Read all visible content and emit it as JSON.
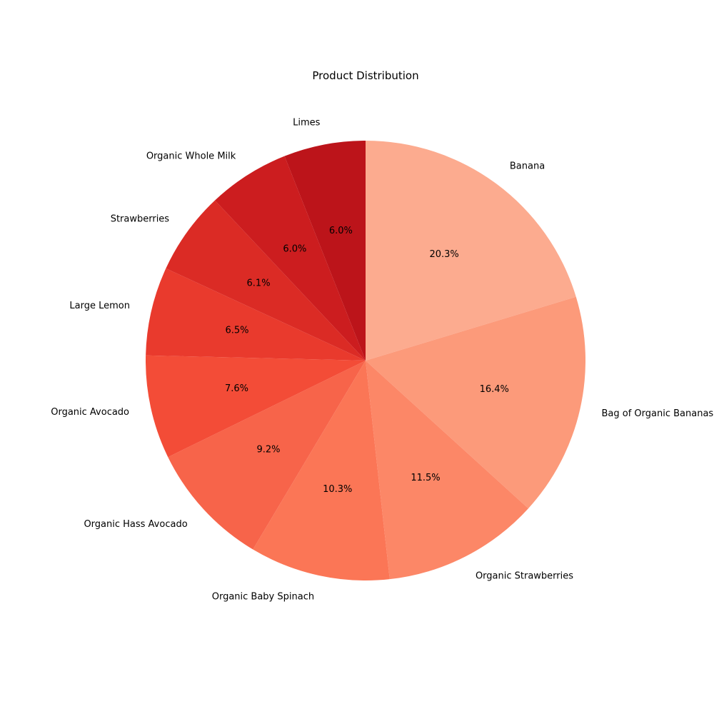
{
  "chart_data": {
    "type": "pie",
    "title": "Product Distribution",
    "title_color": "#8b0000",
    "start": "top",
    "direction": "clockwise",
    "slices": [
      {
        "label": "Banana",
        "value": 20.3,
        "pct_label": "20.3%",
        "color": "#fcab8f"
      },
      {
        "label": "Bag of Organic Bananas",
        "value": 16.4,
        "pct_label": "16.4%",
        "color": "#fc9a7a"
      },
      {
        "label": "Organic Strawberries",
        "value": 11.5,
        "pct_label": "11.5%",
        "color": "#fc8767"
      },
      {
        "label": "Organic Baby Spinach",
        "value": 10.3,
        "pct_label": "10.3%",
        "color": "#fb7656"
      },
      {
        "label": "Organic Hass Avocado",
        "value": 9.2,
        "pct_label": "9.2%",
        "color": "#f7644a"
      },
      {
        "label": "Organic Avocado",
        "value": 7.6,
        "pct_label": "7.6%",
        "color": "#f34c37"
      },
      {
        "label": "Large Lemon",
        "value": 6.5,
        "pct_label": "6.5%",
        "color": "#e93a2d"
      },
      {
        "label": "Strawberries",
        "value": 6.1,
        "pct_label": "6.1%",
        "color": "#db2b25"
      },
      {
        "label": "Organic Whole Milk",
        "value": 6.0,
        "pct_label": "6.0%",
        "color": "#cc1d1f"
      },
      {
        "label": "Limes",
        "value": 6.0,
        "pct_label": "6.0%",
        "color": "#bc141a"
      }
    ]
  }
}
